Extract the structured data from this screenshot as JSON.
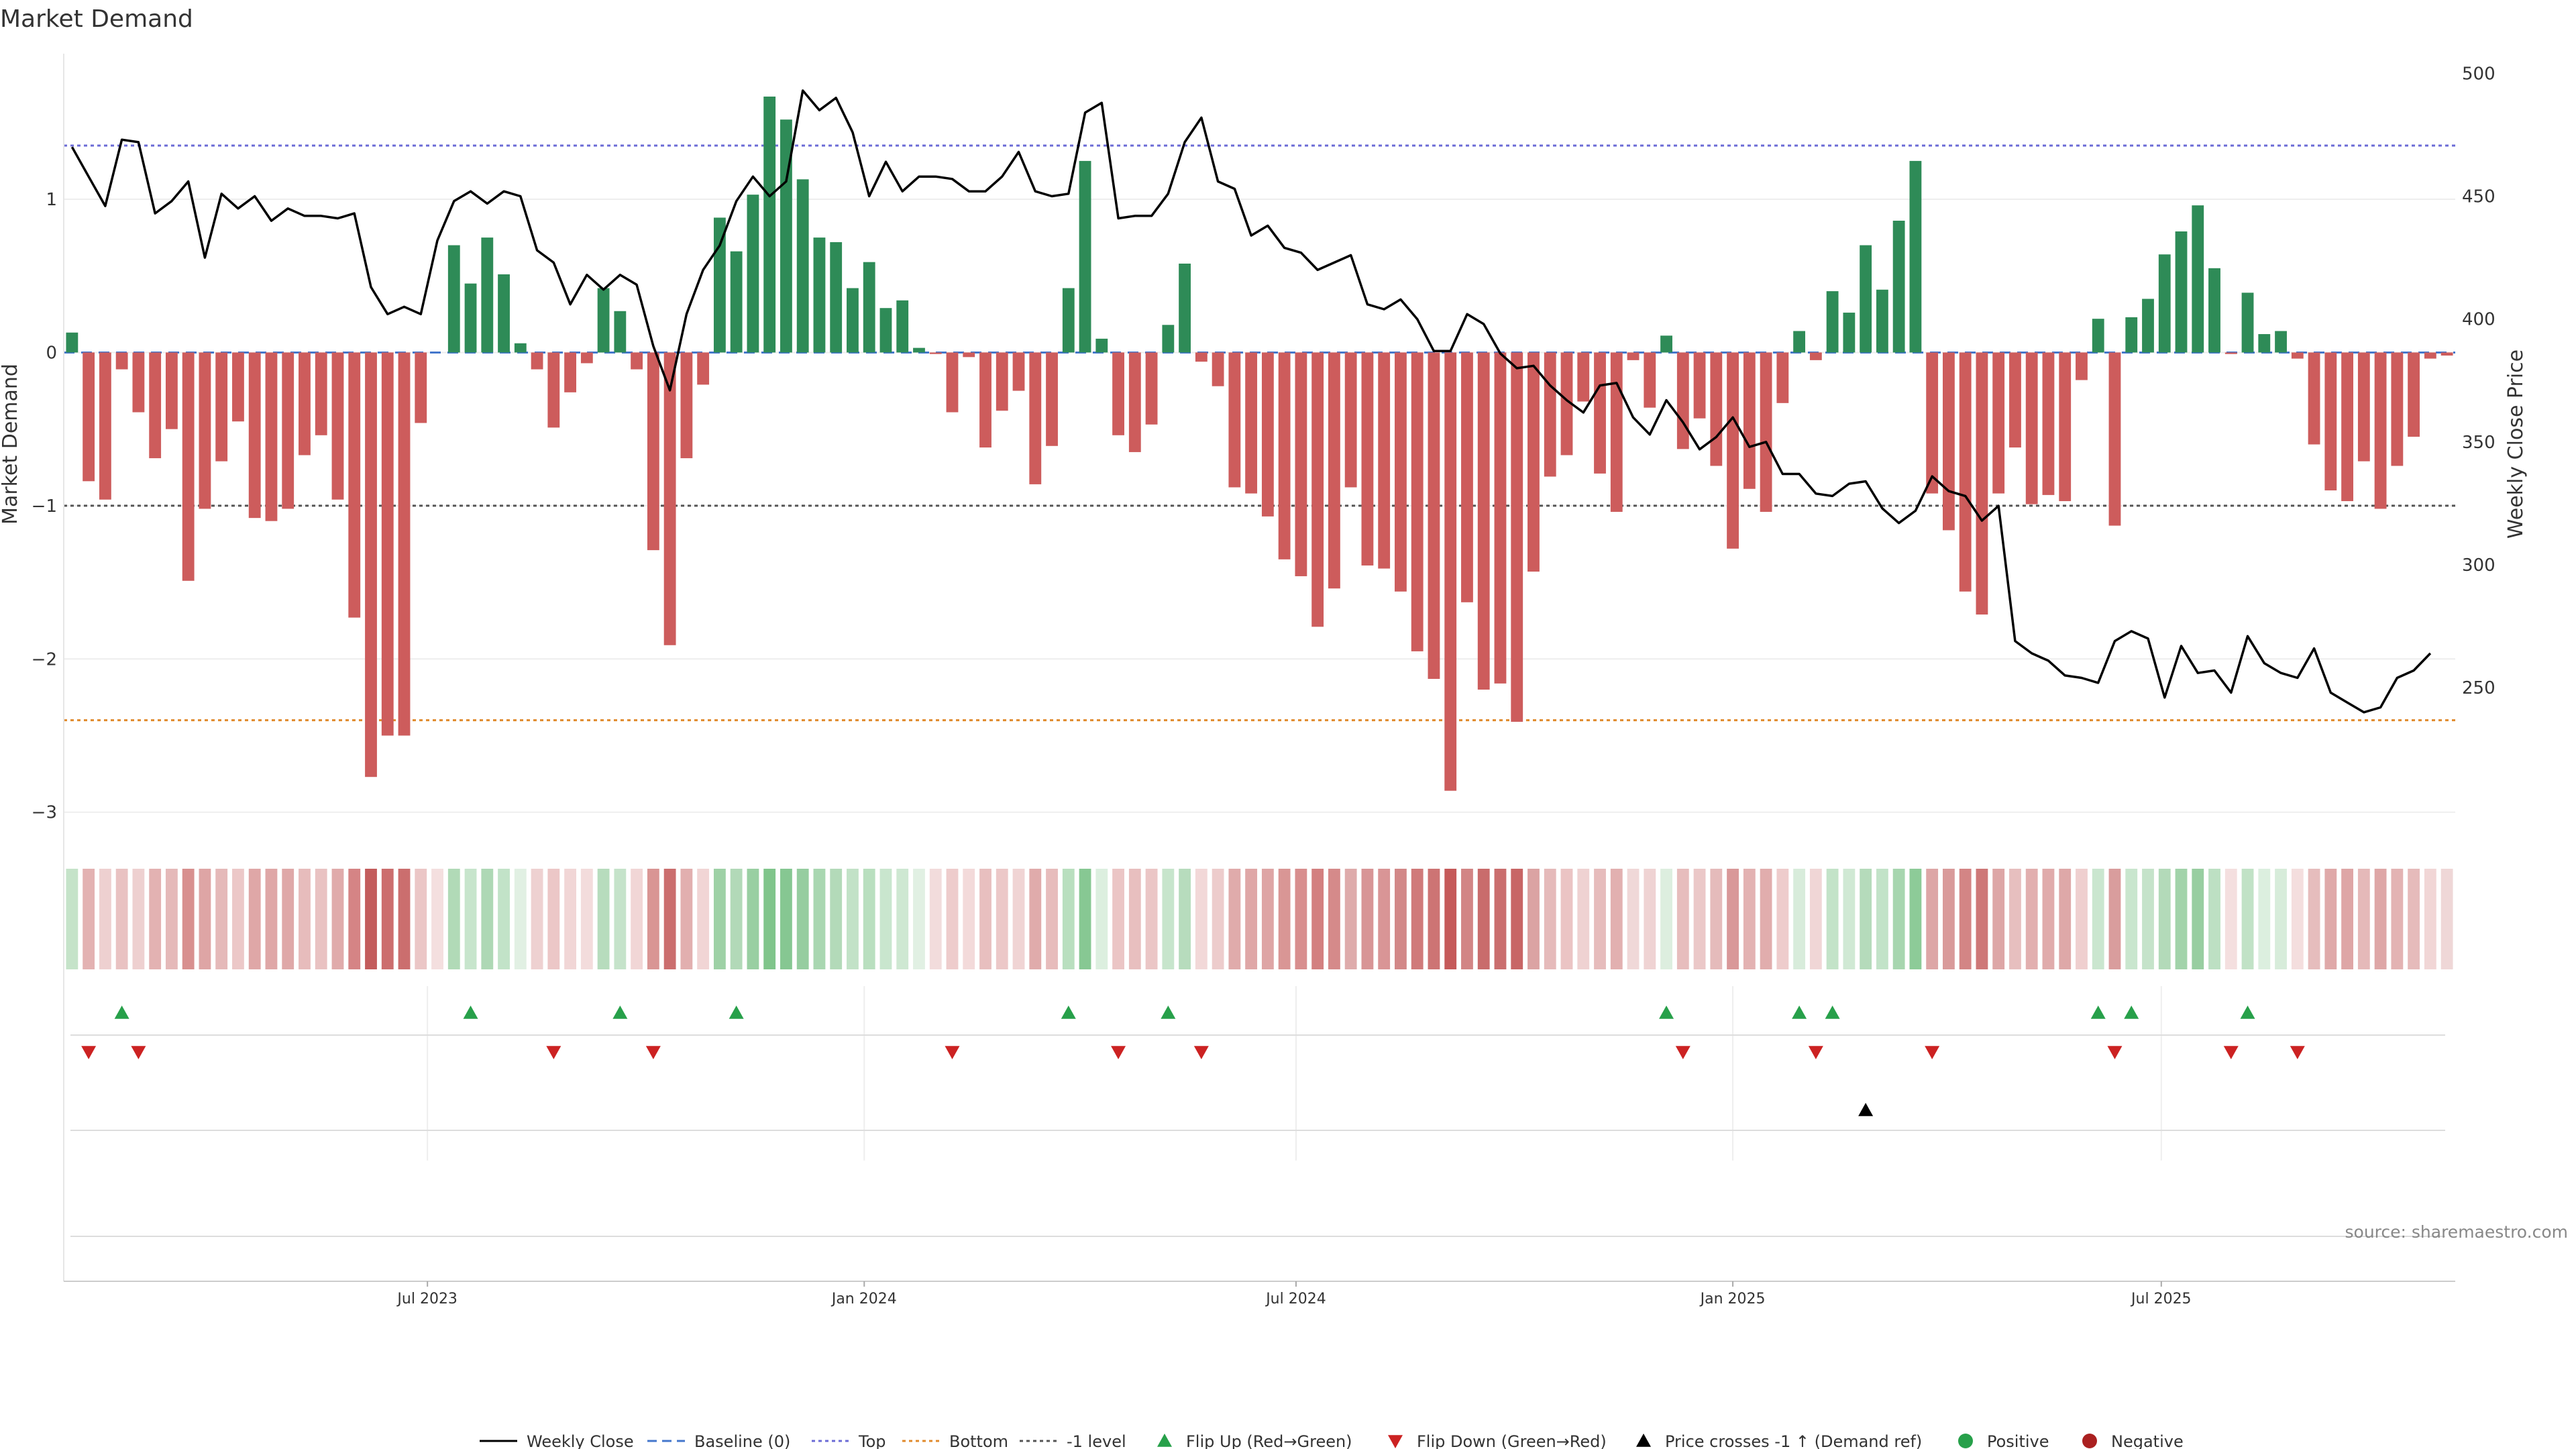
{
  "chart_data": {
    "type": "bar+line",
    "title": "Market Demand",
    "ylabel_left": "Market Demand",
    "ylabel_right": "Weekly Close Price",
    "source": "source: sharemaestro.com",
    "ylim_left": [
      -3.15,
      1.95
    ],
    "ylim_right": [
      190,
      508
    ],
    "left_ticks": [
      1,
      0,
      -1,
      -2,
      -3
    ],
    "left_tick_labels": [
      "1",
      "0",
      "−1",
      "−2",
      "−3"
    ],
    "right_ticks": [
      500,
      450,
      400,
      350,
      300,
      250
    ],
    "right_tick_labels": [
      "500",
      "450",
      "400",
      "350",
      "300",
      "250"
    ],
    "x_start": "2023-01-06",
    "week_count": 144,
    "x_ticks": [
      {
        "label": "Jul 2023",
        "week": 21.4
      },
      {
        "label": "Jan 2024",
        "week": 47.7
      },
      {
        "label": "Jul 2024",
        "week": 73.7
      },
      {
        "label": "Jan 2025",
        "week": 100
      },
      {
        "label": "Jul 2025",
        "week": 125.8
      }
    ],
    "reference_lines": {
      "top": 1.35,
      "bottom": -2.4,
      "minus_one": -1,
      "baseline": 0
    },
    "colors": {
      "positive": "#2e8b57",
      "negative": "#cd5c5c",
      "price": "#000000",
      "top": "#6b6bd6",
      "bottom": "#e08a2c",
      "minus_one": "#555555",
      "baseline": "#4477cc",
      "flip_up": "#27a04a",
      "flip_down": "#cc2222",
      "cross": "#000000",
      "legend_positive": "#27a04a",
      "legend_negative": "#aa2020"
    },
    "demand": [
      0.13,
      -0.84,
      -0.96,
      -0.11,
      -0.39,
      -0.69,
      -0.5,
      -1.49,
      -1.02,
      -0.71,
      -0.45,
      -1.08,
      -1.1,
      -1.02,
      -0.67,
      -0.54,
      -0.96,
      -1.73,
      -2.77,
      -2.5,
      -2.5,
      -0.46,
      0,
      0.7,
      0.45,
      0.75,
      0.51,
      0.06,
      -0.11,
      -0.49,
      -0.26,
      -0.07,
      0.42,
      0.27,
      -0.11,
      -1.29,
      -1.91,
      -0.69,
      -0.21,
      0.88,
      0.66,
      1.03,
      1.67,
      1.52,
      1.13,
      0.75,
      0.72,
      0.42,
      0.59,
      0.29,
      0.34,
      0.03,
      -0.01,
      -0.39,
      -0.03,
      -0.62,
      -0.38,
      -0.25,
      -0.86,
      -0.61,
      0.42,
      1.25,
      0.09,
      -0.54,
      -0.65,
      -0.47,
      0.18,
      0.58,
      -0.06,
      -0.22,
      -0.88,
      -0.92,
      -1.07,
      -1.35,
      -1.46,
      -1.79,
      -1.54,
      -0.88,
      -1.39,
      -1.41,
      -1.56,
      -1.95,
      -2.13,
      -2.86,
      -1.63,
      -2.2,
      -2.16,
      -2.41,
      -1.43,
      -0.81,
      -0.67,
      -0.32,
      -0.79,
      -1.04,
      -0.05,
      -0.36,
      0.11,
      -0.63,
      -0.43,
      -0.74,
      -1.28,
      -0.89,
      -1.04,
      -0.33,
      0.14,
      -0.05,
      0.4,
      0.26,
      0.7,
      0.41,
      0.86,
      1.25,
      -0.92,
      -1.16,
      -1.56,
      -1.71,
      -0.92,
      -0.62,
      -0.99,
      -0.93,
      -0.97,
      -0.18,
      0.22,
      -1.13,
      0.23,
      0.35,
      0.64,
      0.79,
      0.96,
      0.55,
      -0.01,
      0.39,
      0.12,
      0.14,
      -0.04,
      -0.6,
      -0.9,
      -0.97,
      -0.71,
      -1.02,
      -0.74,
      -0.55,
      -0.04,
      -0.02
    ],
    "price": [
      470,
      458,
      446,
      473,
      472,
      443,
      448,
      456,
      425,
      451,
      445,
      450,
      440,
      445,
      442,
      442,
      441,
      443,
      413,
      402,
      405,
      402,
      432,
      448,
      452,
      447,
      452,
      450,
      428,
      423,
      406,
      418,
      412,
      418,
      414,
      389,
      371,
      402,
      420,
      430,
      448,
      458,
      450,
      456,
      493,
      485,
      490,
      476,
      450,
      464,
      452,
      458,
      458,
      457,
      452,
      452,
      458,
      468,
      452,
      450,
      451,
      484,
      488,
      441,
      442,
      442,
      451,
      472,
      482,
      456,
      453,
      434,
      438,
      429,
      427,
      420,
      423,
      426,
      406,
      404,
      408,
      400,
      387,
      387,
      402,
      398,
      386,
      380,
      381,
      373,
      367,
      362,
      373,
      374,
      360,
      353,
      367,
      358,
      347,
      352,
      360,
      348,
      350,
      337,
      337,
      329,
      328,
      333,
      334,
      323,
      317,
      322,
      336,
      330,
      328,
      318,
      324,
      269,
      264,
      261,
      255,
      254,
      252,
      269,
      273,
      270,
      246,
      267,
      256,
      257,
      248,
      271,
      260,
      256,
      254,
      266,
      248,
      244,
      240,
      242,
      254,
      257,
      264
    ],
    "strip_colors": [
      "#c5e3c9",
      "#e3b2b2",
      "#eed0d0",
      "#e9c2c2",
      "#eed0d0",
      "#e3b2b2",
      "#e5b9b9",
      "#d8908f",
      "#dea5a5",
      "#e5b9b9",
      "#ecc8c8",
      "#dfa7a7",
      "#dfa7a7",
      "#dfa8a8",
      "#e7bcbc",
      "#e9c2c2",
      "#e0abab",
      "#d58485",
      "#c35c5c",
      "#cc6e6e",
      "#cb6e6e",
      "#ebc6c6",
      "#f4dfdf",
      "#b1dab7",
      "#c7e5cc",
      "#aed8b5",
      "#c2e3c8",
      "#e1f0e3",
      "#eed1d1",
      "#ecc7c7",
      "#f1d6d6",
      "#f3dcdc",
      "#b7dcbd",
      "#c5e3ca",
      "#f1d6d6",
      "#d99594",
      "#cb6e6e",
      "#e2afaf",
      "#f1d5d5",
      "#9ed1a6",
      "#b2d9b8",
      "#99cfa2",
      "#80c58b",
      "#86c792",
      "#96cda0",
      "#a9d7b1",
      "#b3dab9",
      "#c2e2c7",
      "#b9dfbf",
      "#c9e6ce",
      "#cee8d2",
      "#e1f0e3",
      "#f2dcdc",
      "#eecccc",
      "#f3dada",
      "#e8bfbf",
      "#ecc8c8",
      "#f0d4d4",
      "#e0abab",
      "#e7bcbc",
      "#b9dfbf",
      "#87c893",
      "#dcefdf",
      "#ebc5c5",
      "#e8bfbf",
      "#ebc6c6",
      "#c7e5cc",
      "#b7dcbd",
      "#f2d8d8",
      "#edcccc",
      "#e0abab",
      "#dfa7a7",
      "#dea5a5",
      "#d99695",
      "#d88e8e",
      "#d38080",
      "#d58a8a",
      "#deabab",
      "#d89596",
      "#d99596",
      "#d28888",
      "#d07a7a",
      "#cd7474",
      "#c55a5a",
      "#d28585",
      "#c96c6c",
      "#ca6e6e",
      "#c86666",
      "#dba3a3",
      "#e5baba",
      "#ebc4c4",
      "#efd2d2",
      "#e6bcbc",
      "#e2b0b0",
      "#f0d8d8",
      "#efd3d3",
      "#ddeedf",
      "#e7bdbd",
      "#ebc8c8",
      "#e5bbbb",
      "#d99899",
      "#e3b2b2",
      "#e1adad",
      "#eecccc",
      "#d8ecdb",
      "#f0d6d6",
      "#c3e3c8",
      "#d0e9d4",
      "#b5dbbb",
      "#c2e3c8",
      "#a7d6af",
      "#8dcb98",
      "#dda6a6",
      "#d99a9a",
      "#d38585",
      "#ce7878",
      "#dda6a6",
      "#e7bfbf",
      "#e2afaf",
      "#e0abab",
      "#dea8a8",
      "#efcfcf",
      "#cae6cf",
      "#d99d9d",
      "#c9e6ce",
      "#c5e3ca",
      "#b3dab9",
      "#a2d3aa",
      "#98cea1",
      "#bde0c3",
      "#f4dfdf",
      "#c1e2c6",
      "#dcefdf",
      "#d7ecda",
      "#f4dede",
      "#e6bdbd",
      "#dfa9a9",
      "#dea6a6",
      "#e5b9b9",
      "#dea7a7",
      "#e3b3b3",
      "#e6bbbb",
      "#f1d6d6",
      "#efd7d7"
    ],
    "flip_up_weeks": [
      3,
      24,
      33,
      40,
      60,
      66,
      96,
      104,
      106,
      122,
      124,
      131
    ],
    "flip_down_weeks": [
      1,
      4,
      29,
      35,
      53,
      63,
      68,
      97,
      105,
      112,
      123,
      130,
      134
    ],
    "cross_weeks": [
      108
    ],
    "legend": [
      {
        "key": "price",
        "label": "Weekly Close"
      },
      {
        "key": "baseline",
        "label": "Baseline (0)"
      },
      {
        "key": "top",
        "label": "Top"
      },
      {
        "key": "bottom",
        "label": "Bottom"
      },
      {
        "key": "minus_one",
        "label": "-1 level"
      },
      {
        "key": "flip_up",
        "label": "Flip Up (Red→Green)"
      },
      {
        "key": "flip_down",
        "label": "Flip Down (Green→Red)"
      },
      {
        "key": "cross",
        "label": "Price crosses -1 ↑ (Demand ref)"
      },
      {
        "key": "positive",
        "label": "Positive"
      },
      {
        "key": "negative",
        "label": "Negative"
      }
    ]
  }
}
